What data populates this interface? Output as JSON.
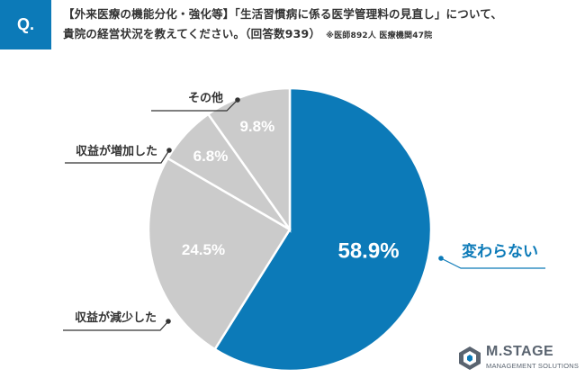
{
  "header": {
    "badge": "Q.",
    "question_line1": "【外来医療の機能分化・強化等】「生活習慣病に係る医学管理料の見直し」について、",
    "question_line2": "貴院の経営状況を教えてください。（回答数939）",
    "note": "※医師892人 医療機関47院"
  },
  "chart_data": {
    "type": "pie",
    "title": "",
    "categories": [
      "変わらない",
      "収益が減少した",
      "収益が増加した",
      "その他"
    ],
    "values": [
      58.9,
      24.5,
      6.8,
      9.8
    ],
    "value_labels": [
      "58.9%",
      "24.5%",
      "6.8%",
      "9.8%"
    ],
    "colors": [
      "#0c7ab8",
      "#cbcbcb",
      "#cbcbcb",
      "#cbcbcb"
    ],
    "start": "12 o'clock, clockwise"
  },
  "logo": {
    "name": "M.STAGE",
    "subtitle": "MANAGEMENT SOLUTIONS"
  }
}
